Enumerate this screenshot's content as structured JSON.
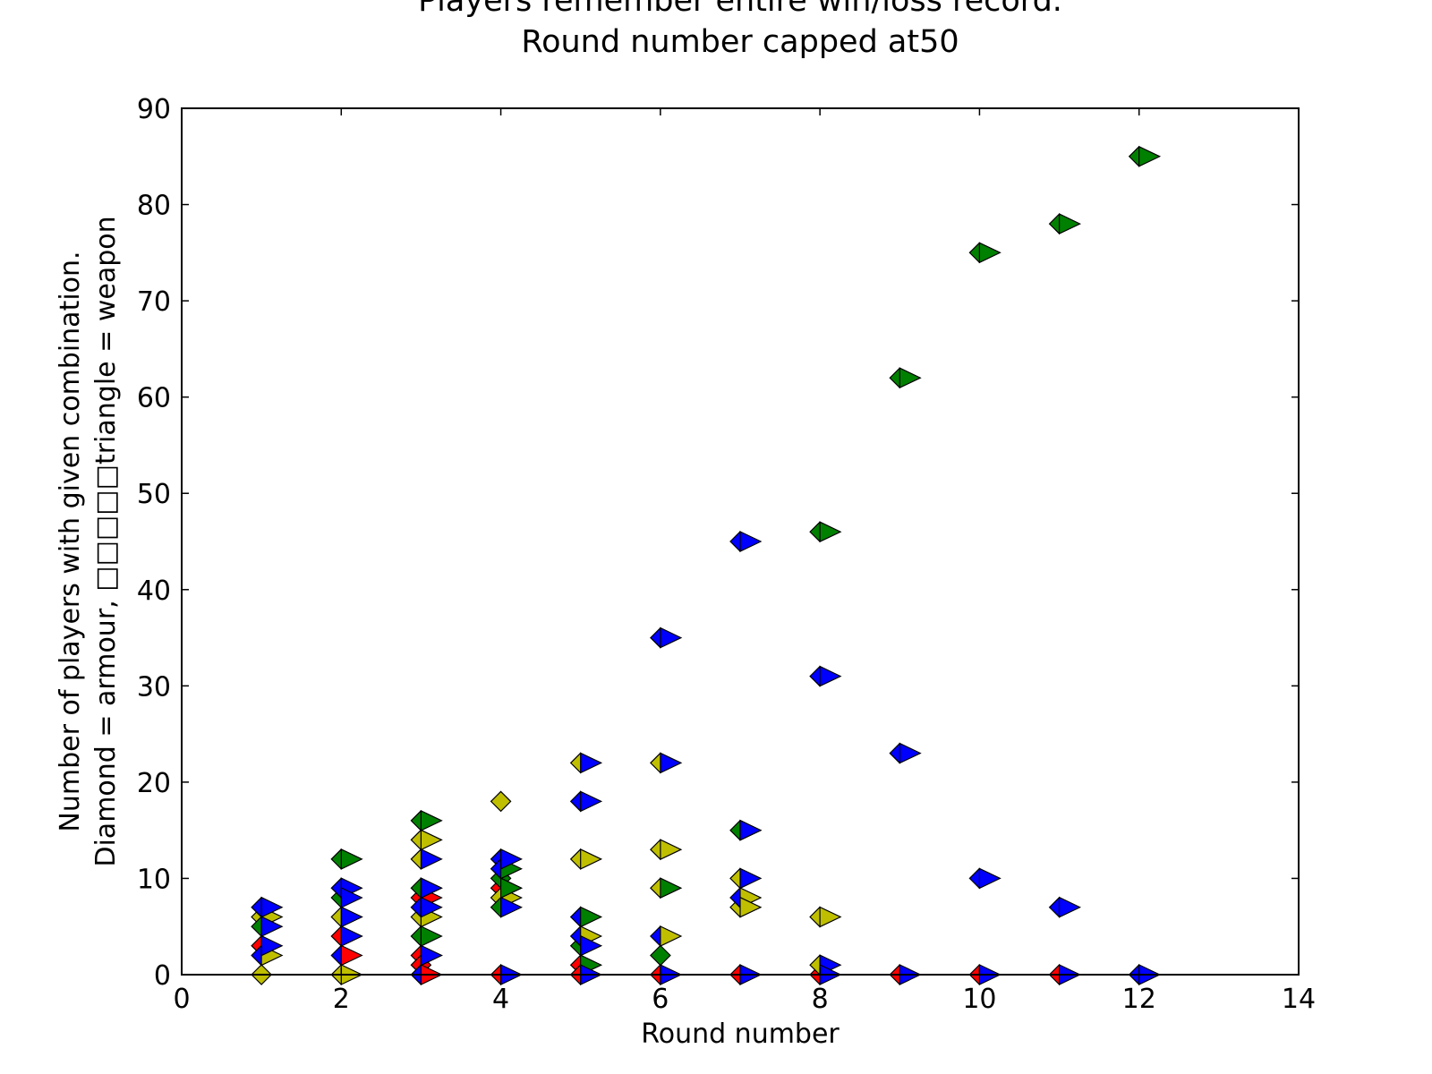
{
  "chart_data": {
    "type": "scatter",
    "title_lines": [
      "Players remember entire win/loss record.",
      "Round number capped at50"
    ],
    "xlabel": "Round number",
    "ylabel_lines": [
      "Number of players with given combination.",
      "Diamond = armour, □□□□□triangle = weapon"
    ],
    "xlim": [
      0,
      14
    ],
    "ylim": [
      0,
      90
    ],
    "xticks": [
      0,
      2,
      4,
      6,
      8,
      10,
      12,
      14
    ],
    "yticks": [
      0,
      10,
      20,
      30,
      40,
      50,
      60,
      70,
      80,
      90
    ],
    "grid": false,
    "colors": {
      "red": "#ff0000",
      "yellow": "#bfbf00",
      "green": "#008000",
      "blue": "#0000ff"
    },
    "series": [
      {
        "marker": "diamond",
        "color": "red",
        "points": [
          [
            1,
            3
          ],
          [
            2,
            4
          ],
          [
            3,
            8
          ],
          [
            3,
            2
          ],
          [
            3,
            1
          ],
          [
            4,
            9
          ],
          [
            4,
            0
          ],
          [
            5,
            1
          ],
          [
            5,
            0
          ],
          [
            6,
            0
          ],
          [
            7,
            0
          ],
          [
            8,
            0
          ],
          [
            9,
            0
          ],
          [
            10,
            0
          ],
          [
            11,
            0
          ]
        ]
      },
      {
        "marker": "diamond",
        "color": "yellow",
        "points": [
          [
            1,
            6
          ],
          [
            1,
            0
          ],
          [
            2,
            6
          ],
          [
            2,
            0
          ],
          [
            3,
            14
          ],
          [
            3,
            12
          ],
          [
            3,
            6
          ],
          [
            4,
            18
          ],
          [
            4,
            8
          ],
          [
            5,
            22
          ],
          [
            5,
            12
          ],
          [
            6,
            22
          ],
          [
            6,
            13
          ],
          [
            6,
            9
          ],
          [
            7,
            10
          ],
          [
            7,
            7
          ],
          [
            8,
            6
          ],
          [
            8,
            1
          ]
        ]
      },
      {
        "marker": "diamond",
        "color": "green",
        "points": [
          [
            1,
            5
          ],
          [
            2,
            12
          ],
          [
            2,
            8
          ],
          [
            3,
            16
          ],
          [
            3,
            9
          ],
          [
            3,
            4
          ],
          [
            4,
            10
          ],
          [
            4,
            7
          ],
          [
            5,
            3
          ],
          [
            6,
            2
          ],
          [
            7,
            15
          ],
          [
            8,
            46
          ],
          [
            9,
            62
          ],
          [
            10,
            75
          ],
          [
            11,
            78
          ],
          [
            12,
            85
          ]
        ]
      },
      {
        "marker": "diamond",
        "color": "blue",
        "points": [
          [
            1,
            7
          ],
          [
            1,
            2
          ],
          [
            2,
            9
          ],
          [
            2,
            2
          ],
          [
            3,
            7
          ],
          [
            3,
            0
          ],
          [
            4,
            12
          ],
          [
            4,
            11
          ],
          [
            5,
            18
          ],
          [
            5,
            6
          ],
          [
            5,
            4
          ],
          [
            6,
            35
          ],
          [
            6,
            4
          ],
          [
            7,
            45
          ],
          [
            7,
            8
          ],
          [
            8,
            31
          ],
          [
            9,
            23
          ],
          [
            10,
            10
          ],
          [
            11,
            7
          ],
          [
            12,
            0
          ]
        ]
      },
      {
        "marker": "triangle",
        "color": "red",
        "points": [
          [
            2,
            4
          ],
          [
            2,
            2
          ],
          [
            3,
            8
          ],
          [
            3,
            2
          ],
          [
            3,
            0
          ],
          [
            4,
            9
          ]
        ]
      },
      {
        "marker": "triangle",
        "color": "yellow",
        "points": [
          [
            1,
            6
          ],
          [
            1,
            2
          ],
          [
            2,
            6
          ],
          [
            2,
            0
          ],
          [
            3,
            14
          ],
          [
            3,
            6
          ],
          [
            4,
            8
          ],
          [
            5,
            4
          ],
          [
            5,
            12
          ],
          [
            6,
            13
          ],
          [
            6,
            4
          ],
          [
            7,
            8
          ],
          [
            7,
            7
          ],
          [
            8,
            6
          ]
        ]
      },
      {
        "marker": "triangle",
        "color": "green",
        "points": [
          [
            2,
            12
          ],
          [
            3,
            16
          ],
          [
            3,
            9
          ],
          [
            3,
            4
          ],
          [
            4,
            11
          ],
          [
            4,
            9
          ],
          [
            5,
            6
          ],
          [
            5,
            1
          ],
          [
            6,
            9
          ],
          [
            7,
            15
          ],
          [
            8,
            46
          ],
          [
            9,
            62
          ],
          [
            10,
            75
          ],
          [
            11,
            78
          ],
          [
            12,
            85
          ]
        ]
      },
      {
        "marker": "triangle",
        "color": "blue",
        "points": [
          [
            1,
            7
          ],
          [
            1,
            5
          ],
          [
            1,
            3
          ],
          [
            2,
            9
          ],
          [
            2,
            8
          ],
          [
            2,
            6
          ],
          [
            2,
            4
          ],
          [
            3,
            12
          ],
          [
            3,
            9
          ],
          [
            3,
            7
          ],
          [
            3,
            2
          ],
          [
            4,
            12
          ],
          [
            4,
            7
          ],
          [
            4,
            0
          ],
          [
            5,
            22
          ],
          [
            5,
            18
          ],
          [
            5,
            3
          ],
          [
            5,
            0
          ],
          [
            6,
            35
          ],
          [
            6,
            22
          ],
          [
            6,
            0
          ],
          [
            7,
            45
          ],
          [
            7,
            10
          ],
          [
            7,
            15
          ],
          [
            7,
            0
          ],
          [
            8,
            31
          ],
          [
            8,
            1
          ],
          [
            8,
            0
          ],
          [
            9,
            23
          ],
          [
            9,
            0
          ],
          [
            10,
            10
          ],
          [
            10,
            0
          ],
          [
            11,
            7
          ],
          [
            11,
            0
          ],
          [
            12,
            0
          ]
        ]
      }
    ]
  }
}
